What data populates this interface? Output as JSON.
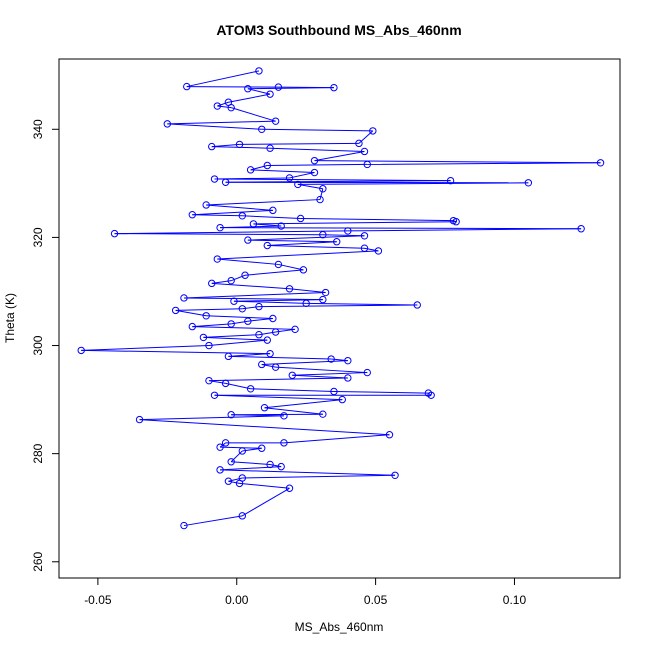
{
  "chart_data": {
    "type": "scatter",
    "title": "ATOM3 Southbound MS_Abs_460nm",
    "xlabel": "MS_Abs_460nm",
    "ylabel": "Theta (K)",
    "xlim": [
      -0.064,
      0.138
    ],
    "ylim": [
      257,
      353
    ],
    "grid": false,
    "connected": true,
    "marker": "open-circle",
    "color": "#0000ff",
    "x_ticks": [
      {
        "value": -0.05,
        "label": "-0.05"
      },
      {
        "value": 0.0,
        "label": "0.00"
      },
      {
        "value": 0.05,
        "label": "0.05"
      },
      {
        "value": 0.1,
        "label": "0.10"
      }
    ],
    "y_ticks": [
      {
        "value": 260,
        "label": "260"
      },
      {
        "value": 280,
        "label": "280"
      },
      {
        "value": 300,
        "label": "300"
      },
      {
        "value": 320,
        "label": "320"
      },
      {
        "value": 340,
        "label": "340"
      }
    ],
    "points": [
      {
        "x": 0.008,
        "y": 350.8
      },
      {
        "x": -0.018,
        "y": 347.9
      },
      {
        "x": 0.015,
        "y": 347.8
      },
      {
        "x": 0.035,
        "y": 347.7
      },
      {
        "x": 0.004,
        "y": 347.5
      },
      {
        "x": 0.012,
        "y": 346.5
      },
      {
        "x": -0.003,
        "y": 345.0
      },
      {
        "x": -0.007,
        "y": 344.3
      },
      {
        "x": -0.002,
        "y": 344.0
      },
      {
        "x": 0.014,
        "y": 341.5
      },
      {
        "x": -0.025,
        "y": 341.0
      },
      {
        "x": 0.009,
        "y": 340.0
      },
      {
        "x": 0.049,
        "y": 339.7
      },
      {
        "x": 0.044,
        "y": 337.4
      },
      {
        "x": 0.001,
        "y": 337.2
      },
      {
        "x": -0.009,
        "y": 336.8
      },
      {
        "x": 0.012,
        "y": 336.5
      },
      {
        "x": 0.046,
        "y": 335.9
      },
      {
        "x": 0.028,
        "y": 334.2
      },
      {
        "x": 0.131,
        "y": 333.8
      },
      {
        "x": 0.047,
        "y": 333.5
      },
      {
        "x": 0.011,
        "y": 333.3
      },
      {
        "x": 0.005,
        "y": 332.5
      },
      {
        "x": 0.028,
        "y": 332.0
      },
      {
        "x": 0.019,
        "y": 331.0
      },
      {
        "x": -0.008,
        "y": 330.8
      },
      {
        "x": 0.077,
        "y": 330.5
      },
      {
        "x": -0.004,
        "y": 330.2
      },
      {
        "x": 0.105,
        "y": 330.1
      },
      {
        "x": 0.022,
        "y": 329.8
      },
      {
        "x": 0.031,
        "y": 329.0
      },
      {
        "x": 0.03,
        "y": 327.0
      },
      {
        "x": -0.011,
        "y": 326.0
      },
      {
        "x": 0.013,
        "y": 325.0
      },
      {
        "x": -0.016,
        "y": 324.2
      },
      {
        "x": 0.002,
        "y": 324.0
      },
      {
        "x": 0.023,
        "y": 323.5
      },
      {
        "x": 0.078,
        "y": 323.1
      },
      {
        "x": 0.079,
        "y": 322.9
      },
      {
        "x": 0.006,
        "y": 322.5
      },
      {
        "x": 0.016,
        "y": 322.1
      },
      {
        "x": -0.006,
        "y": 321.8
      },
      {
        "x": 0.124,
        "y": 321.6
      },
      {
        "x": 0.04,
        "y": 321.2
      },
      {
        "x": -0.044,
        "y": 320.7
      },
      {
        "x": 0.031,
        "y": 320.5
      },
      {
        "x": 0.046,
        "y": 320.3
      },
      {
        "x": 0.004,
        "y": 319.5
      },
      {
        "x": 0.036,
        "y": 319.2
      },
      {
        "x": 0.011,
        "y": 318.5
      },
      {
        "x": 0.046,
        "y": 318.0
      },
      {
        "x": 0.051,
        "y": 317.5
      },
      {
        "x": -0.007,
        "y": 316.0
      },
      {
        "x": 0.015,
        "y": 315.0
      },
      {
        "x": 0.024,
        "y": 314.0
      },
      {
        "x": 0.003,
        "y": 313.0
      },
      {
        "x": -0.002,
        "y": 312.0
      },
      {
        "x": -0.009,
        "y": 311.5
      },
      {
        "x": 0.019,
        "y": 310.5
      },
      {
        "x": 0.032,
        "y": 309.8
      },
      {
        "x": -0.019,
        "y": 308.8
      },
      {
        "x": 0.031,
        "y": 308.5
      },
      {
        "x": -0.001,
        "y": 308.2
      },
      {
        "x": 0.025,
        "y": 307.8
      },
      {
        "x": 0.065,
        "y": 307.5
      },
      {
        "x": 0.008,
        "y": 307.2
      },
      {
        "x": 0.002,
        "y": 306.8
      },
      {
        "x": -0.022,
        "y": 306.5
      },
      {
        "x": -0.011,
        "y": 305.5
      },
      {
        "x": 0.013,
        "y": 305.0
      },
      {
        "x": 0.004,
        "y": 304.5
      },
      {
        "x": -0.002,
        "y": 304.0
      },
      {
        "x": -0.016,
        "y": 303.5
      },
      {
        "x": 0.021,
        "y": 303.0
      },
      {
        "x": 0.014,
        "y": 302.5
      },
      {
        "x": 0.008,
        "y": 302.0
      },
      {
        "x": -0.012,
        "y": 301.5
      },
      {
        "x": 0.011,
        "y": 301.0
      },
      {
        "x": -0.01,
        "y": 300.0
      },
      {
        "x": -0.056,
        "y": 299.1
      },
      {
        "x": 0.012,
        "y": 298.5
      },
      {
        "x": -0.003,
        "y": 298.0
      },
      {
        "x": 0.034,
        "y": 297.5
      },
      {
        "x": 0.04,
        "y": 297.2
      },
      {
        "x": 0.009,
        "y": 296.5
      },
      {
        "x": 0.014,
        "y": 296.0
      },
      {
        "x": 0.047,
        "y": 295.0
      },
      {
        "x": 0.02,
        "y": 294.5
      },
      {
        "x": 0.04,
        "y": 294.0
      },
      {
        "x": -0.01,
        "y": 293.5
      },
      {
        "x": -0.004,
        "y": 293.0
      },
      {
        "x": 0.005,
        "y": 292.0
      },
      {
        "x": 0.035,
        "y": 291.5
      },
      {
        "x": 0.069,
        "y": 291.2
      },
      {
        "x": 0.07,
        "y": 290.8
      },
      {
        "x": -0.008,
        "y": 290.8
      },
      {
        "x": 0.038,
        "y": 290.0
      },
      {
        "x": 0.01,
        "y": 288.5
      },
      {
        "x": 0.031,
        "y": 287.3
      },
      {
        "x": -0.002,
        "y": 287.2
      },
      {
        "x": 0.017,
        "y": 287.0
      },
      {
        "x": -0.035,
        "y": 286.3
      },
      {
        "x": 0.055,
        "y": 283.5
      },
      {
        "x": 0.017,
        "y": 282.0
      },
      {
        "x": -0.004,
        "y": 282.0
      },
      {
        "x": -0.006,
        "y": 281.2
      },
      {
        "x": 0.009,
        "y": 281.0
      },
      {
        "x": 0.002,
        "y": 280.5
      },
      {
        "x": -0.002,
        "y": 278.5
      },
      {
        "x": 0.012,
        "y": 278.0
      },
      {
        "x": 0.016,
        "y": 277.6
      },
      {
        "x": -0.006,
        "y": 277.0
      },
      {
        "x": 0.057,
        "y": 276.0
      },
      {
        "x": 0.002,
        "y": 275.5
      },
      {
        "x": -0.003,
        "y": 274.9
      },
      {
        "x": 0.001,
        "y": 274.5
      },
      {
        "x": 0.019,
        "y": 273.6
      },
      {
        "x": 0.002,
        "y": 268.5
      },
      {
        "x": -0.019,
        "y": 266.7
      }
    ]
  }
}
